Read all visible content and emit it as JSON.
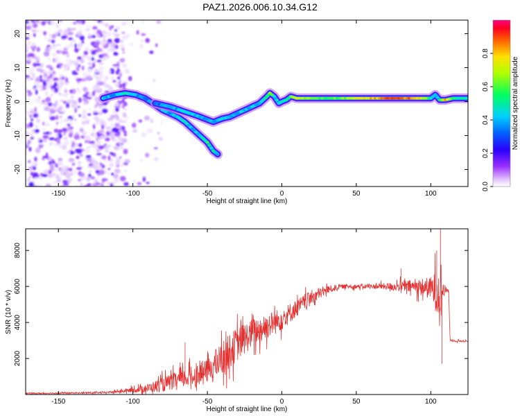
{
  "title": "PAZ1.2026.006.10.34.G12",
  "colors": {
    "snr_line": "#e53030",
    "axis": "#000000"
  },
  "chart_data": [
    {
      "type": "heatmap",
      "name": "spectrogram",
      "xlabel": "Height of straight line (km)",
      "ylabel": "Frequency (Hz)",
      "xlim": [
        -172,
        125
      ],
      "ylim": [
        -25,
        24
      ],
      "xticks": [
        -150,
        -100,
        -50,
        0,
        50,
        100
      ],
      "yticks": [
        -20,
        -10,
        0,
        10,
        20
      ],
      "colorbar": {
        "label": "Normalized spectral amplitude",
        "range": [
          0,
          1
        ],
        "ticks": [
          0.0,
          0.2,
          0.4,
          0.6,
          0.8
        ],
        "tick_labels": [
          "0.0",
          "0.2",
          "0.4",
          "0.6",
          "0.8"
        ]
      },
      "noise_region_x": [
        -172,
        -105
      ],
      "main_track": [
        {
          "x": -120,
          "f": 1.0,
          "a": 0.45
        },
        {
          "x": -112,
          "f": 2.0,
          "a": 0.4
        },
        {
          "x": -105,
          "f": 2.5,
          "a": 0.5
        },
        {
          "x": -98,
          "f": 2.0,
          "a": 0.4
        },
        {
          "x": -92,
          "f": 1.0,
          "a": 0.35
        },
        {
          "x": -85,
          "f": -1.0,
          "a": 0.4
        },
        {
          "x": -80,
          "f": -2.5,
          "a": 0.45
        },
        {
          "x": -75,
          "f": -3.5,
          "a": 0.4
        },
        {
          "x": -70,
          "f": -4.5,
          "a": 0.45
        },
        {
          "x": -65,
          "f": -6.0,
          "a": 0.5
        },
        {
          "x": -60,
          "f": -8.0,
          "a": 0.4
        },
        {
          "x": -55,
          "f": -10.0,
          "a": 0.45
        },
        {
          "x": -50,
          "f": -12.0,
          "a": 0.55
        },
        {
          "x": -46,
          "f": -14.5,
          "a": 0.5
        },
        {
          "x": -43,
          "f": -15.5,
          "a": 0.4
        }
      ],
      "secondary_track": [
        {
          "x": -85,
          "f": -0.5,
          "a": 0.35
        },
        {
          "x": -75,
          "f": -1.5,
          "a": 0.4
        },
        {
          "x": -65,
          "f": -3.0,
          "a": 0.45
        },
        {
          "x": -58,
          "f": -4.0,
          "a": 0.45
        },
        {
          "x": -52,
          "f": -5.0,
          "a": 0.4
        },
        {
          "x": -46,
          "f": -6.0,
          "a": 0.4
        },
        {
          "x": -40,
          "f": -5.0,
          "a": 0.45
        },
        {
          "x": -35,
          "f": -4.5,
          "a": 0.4
        },
        {
          "x": -30,
          "f": -3.5,
          "a": 0.4
        },
        {
          "x": -25,
          "f": -2.5,
          "a": 0.45
        },
        {
          "x": -20,
          "f": -1.5,
          "a": 0.45
        },
        {
          "x": -15,
          "f": -0.5,
          "a": 0.45
        },
        {
          "x": -10,
          "f": 1.5,
          "a": 0.55
        },
        {
          "x": -8,
          "f": 2.5,
          "a": 0.65
        },
        {
          "x": -5,
          "f": 1.5,
          "a": 0.5
        },
        {
          "x": -2,
          "f": -0.5,
          "a": 0.45
        },
        {
          "x": 0,
          "f": 0.0,
          "a": 0.5
        },
        {
          "x": 3,
          "f": 0.5,
          "a": 0.55
        },
        {
          "x": 6,
          "f": 1.5,
          "a": 0.6
        },
        {
          "x": 10,
          "f": 1.0,
          "a": 0.8
        },
        {
          "x": 20,
          "f": 1.0,
          "a": 0.6
        },
        {
          "x": 30,
          "f": 1.0,
          "a": 0.6
        },
        {
          "x": 40,
          "f": 1.0,
          "a": 0.65
        },
        {
          "x": 50,
          "f": 1.0,
          "a": 0.7
        },
        {
          "x": 60,
          "f": 1.0,
          "a": 0.8
        },
        {
          "x": 70,
          "f": 1.0,
          "a": 0.9
        },
        {
          "x": 80,
          "f": 1.0,
          "a": 0.9
        },
        {
          "x": 90,
          "f": 1.0,
          "a": 0.85
        },
        {
          "x": 95,
          "f": 1.0,
          "a": 0.7
        },
        {
          "x": 100,
          "f": 1.0,
          "a": 0.55
        },
        {
          "x": 103,
          "f": 2.0,
          "a": 0.4
        },
        {
          "x": 106,
          "f": 0.5,
          "a": 0.55
        },
        {
          "x": 110,
          "f": 0.5,
          "a": 0.85
        },
        {
          "x": 115,
          "f": 1.0,
          "a": 0.6
        },
        {
          "x": 120,
          "f": 1.0,
          "a": 0.55
        },
        {
          "x": 125,
          "f": 1.0,
          "a": 0.5
        }
      ]
    },
    {
      "type": "line",
      "name": "snr",
      "xlabel": "Height of straight line (km)",
      "ylabel": "SNR (10 * v/v)",
      "xlim": [
        -172,
        125
      ],
      "ylim": [
        0,
        9200
      ],
      "xticks": [
        -150,
        -100,
        -50,
        0,
        50,
        100
      ],
      "yticks": [
        2000,
        4000,
        6000,
        8000
      ],
      "envelope": [
        {
          "x": -172,
          "mean": 60,
          "noise": 40
        },
        {
          "x": -120,
          "mean": 100,
          "noise": 60
        },
        {
          "x": -105,
          "mean": 200,
          "noise": 120
        },
        {
          "x": -90,
          "mean": 350,
          "noise": 300
        },
        {
          "x": -80,
          "mean": 550,
          "noise": 500
        },
        {
          "x": -70,
          "mean": 800,
          "noise": 600
        },
        {
          "x": -60,
          "mean": 1000,
          "noise": 700
        },
        {
          "x": -50,
          "mean": 1300,
          "noise": 800
        },
        {
          "x": -40,
          "mean": 2000,
          "noise": 1200
        },
        {
          "x": -30,
          "mean": 2800,
          "noise": 1200
        },
        {
          "x": -20,
          "mean": 3400,
          "noise": 1000
        },
        {
          "x": -10,
          "mean": 3800,
          "noise": 900
        },
        {
          "x": 0,
          "mean": 4200,
          "noise": 800
        },
        {
          "x": 10,
          "mean": 4800,
          "noise": 600
        },
        {
          "x": 20,
          "mean": 5400,
          "noise": 500
        },
        {
          "x": 30,
          "mean": 5800,
          "noise": 300
        },
        {
          "x": 40,
          "mean": 6000,
          "noise": 150
        },
        {
          "x": 60,
          "mean": 6000,
          "noise": 150
        },
        {
          "x": 75,
          "mean": 6000,
          "noise": 300
        },
        {
          "x": 90,
          "mean": 6000,
          "noise": 500
        },
        {
          "x": 100,
          "mean": 5900,
          "noise": 800
        },
        {
          "x": 105,
          "mean": 5700,
          "noise": 1800
        },
        {
          "x": 110,
          "mean": 5800,
          "noise": 200
        },
        {
          "x": 112,
          "mean": 5800,
          "noise": 100
        },
        {
          "x": 113,
          "mean": 3000,
          "noise": 80
        },
        {
          "x": 125,
          "mean": 2950,
          "noise": 60
        }
      ],
      "spikes": [
        {
          "x": 106.5,
          "y": 9200
        },
        {
          "x": 104,
          "y": 8000
        },
        {
          "x": 107.5,
          "y": 1700
        },
        {
          "x": 80,
          "y": 7000
        },
        {
          "x": -65,
          "y": 2900
        }
      ]
    }
  ]
}
